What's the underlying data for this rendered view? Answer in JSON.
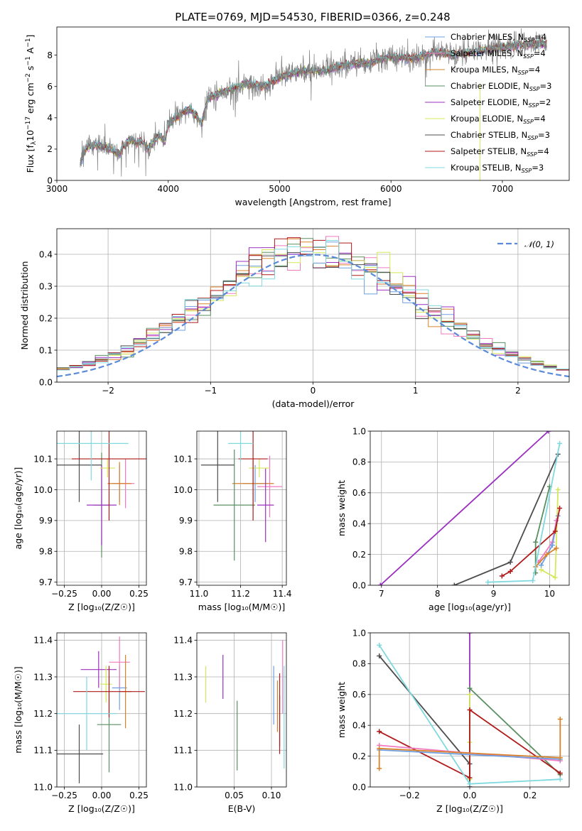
{
  "colors": {
    "cm": "#6f9fe0",
    "sm": "#f07ac0",
    "km": "#d9822b",
    "ce": "#5a8f62",
    "se": "#9b30c0",
    "ke": "#d4e85a",
    "cs": "#4d4d4d",
    "ss": "#b01a1a",
    "ks": "#7fd9df",
    "obs": "#808080",
    "gauss": "#5a8ad9"
  },
  "chart_data": [
    {
      "id": "spectrum",
      "type": "line",
      "title": "PLATE=0769, MJD=54530, FIBERID=0366, z=0.248",
      "xlabel": "wavelength [Angstrom, rest frame]",
      "ylabel_pre": "Flux [f",
      "ylabel_sub": "λ",
      "ylabel_mid": "10",
      "ylabel_exp": "−17",
      "ylabel_post": " erg cm",
      "ylabel_exp2": "−2",
      "ylabel_post2": " s",
      "ylabel_exp3": "−1",
      "ylabel_post3": " A",
      "ylabel_exp4": "−1",
      "ylabel_end": "]",
      "xlim": [
        3000,
        7600
      ],
      "ylim": [
        0,
        9.8
      ],
      "xticks": [
        3000,
        4000,
        5000,
        6000,
        7000
      ],
      "yticks": [
        0,
        2,
        4,
        6,
        8
      ],
      "legend_position": "top-right",
      "continuum": [
        [
          3210,
          1.1
        ],
        [
          3260,
          2.1
        ],
        [
          3320,
          2.2
        ],
        [
          3400,
          2.2
        ],
        [
          3500,
          1.9
        ],
        [
          3560,
          1.7
        ],
        [
          3600,
          2.2
        ],
        [
          3660,
          2.6
        ],
        [
          3720,
          2.4
        ],
        [
          3760,
          2.5
        ],
        [
          3820,
          2.0
        ],
        [
          3880,
          2.6
        ],
        [
          3920,
          2.9
        ],
        [
          3970,
          2.4
        ],
        [
          4000,
          3.6
        ],
        [
          4100,
          4.2
        ],
        [
          4200,
          4.6
        ],
        [
          4300,
          3.6
        ],
        [
          4350,
          5.2
        ],
        [
          4500,
          5.7
        ],
        [
          4700,
          6.2
        ],
        [
          4861,
          6.0
        ],
        [
          5000,
          6.6
        ],
        [
          5200,
          7.0
        ],
        [
          5400,
          7.0
        ],
        [
          5600,
          7.4
        ],
        [
          5800,
          7.5
        ],
        [
          6000,
          7.9
        ],
        [
          6200,
          7.8
        ],
        [
          6400,
          8.2
        ],
        [
          6563,
          8.0
        ],
        [
          6800,
          8.3
        ],
        [
          7000,
          8.5
        ],
        [
          7200,
          8.7
        ],
        [
          7400,
          8.7
        ]
      ],
      "series": [
        {
          "key": "cm",
          "label_pre": "Chabrier MILES, N",
          "label_sub": "SSP",
          "label_post": "=4"
        },
        {
          "key": "sm",
          "label_pre": "Salpeter MILES, N",
          "label_sub": "SSP",
          "label_post": "=4"
        },
        {
          "key": "km",
          "label_pre": "Kroupa MILES, N",
          "label_sub": "SSP",
          "label_post": "=4"
        },
        {
          "key": "ce",
          "label_pre": "Chabrier ELODIE, N",
          "label_sub": "SSP",
          "label_post": "=3"
        },
        {
          "key": "se",
          "label_pre": "Salpeter ELODIE, N",
          "label_sub": "SSP",
          "label_post": "=2"
        },
        {
          "key": "ke",
          "label_pre": "Kroupa ELODIE, N",
          "label_sub": "SSP",
          "label_post": "=4"
        },
        {
          "key": "cs",
          "label_pre": "Chabrier STELIB, N",
          "label_sub": "SSP",
          "label_post": "=3"
        },
        {
          "key": "ss",
          "label_pre": "Salpeter STELIB, N",
          "label_sub": "SSP",
          "label_post": "=4"
        },
        {
          "key": "ks",
          "label_pre": "Kroupa STELIB, N",
          "label_sub": "SSP",
          "label_post": "=3"
        }
      ]
    },
    {
      "id": "residuals",
      "type": "histogram",
      "xlabel": "(data-model)/error",
      "ylabel": "Normed distribution",
      "xlim": [
        -2.5,
        2.5
      ],
      "ylim": [
        0,
        0.48
      ],
      "xticks": [
        -2,
        -1,
        0,
        1,
        2
      ],
      "xtick_labels": [
        "−2",
        "−1",
        "0",
        "1",
        "2"
      ],
      "yticks": [
        0.0,
        0.1,
        0.2,
        0.3,
        0.4
      ],
      "ytick_labels": [
        "0.0",
        "0.1",
        "0.2",
        "0.3",
        "0.4"
      ],
      "grid": true,
      "legend_position": "top-right",
      "legend_label": "𝒩(0, 1)",
      "gaussian": {
        "mu": 0,
        "sigma": 1
      }
    },
    {
      "id": "age_vs_Z",
      "type": "errorbar",
      "xlabel": "Z [log₁₀(Z/Z☉)]",
      "ylabel": "age  [log₁₀(age/yr)]",
      "xlim": [
        -0.3,
        0.3
      ],
      "ylim": [
        9.69,
        10.19
      ],
      "xticks": [
        -0.25,
        0.0,
        0.25
      ],
      "xtick_labels": [
        "−0.25",
        "0.00",
        "0.25"
      ],
      "yticks": [
        9.7,
        9.8,
        9.9,
        10.0,
        10.1
      ],
      "ytick_labels": [
        "9.7",
        "9.8",
        "9.9",
        "10.0",
        "10.1"
      ],
      "grid": true,
      "points": [
        {
          "key": "cm",
          "x": 0.12,
          "xerr": 0.05,
          "y": 10.02,
          "yerr": 0.06
        },
        {
          "key": "sm",
          "x": 0.16,
          "xerr": 0.06,
          "y": 10.02,
          "yerr": 0.08
        },
        {
          "key": "km",
          "x": 0.12,
          "xerr": 0.08,
          "y": 10.02,
          "yerr": 0.07
        },
        {
          "key": "ce",
          "x": 0.0,
          "xerr": 0.05,
          "y": 9.95,
          "yerr": 0.17
        },
        {
          "key": "se",
          "x": 0.0,
          "xerr": 0.1,
          "y": 9.95,
          "yerr": 0.13
        },
        {
          "key": "ke",
          "x": 0.04,
          "xerr": 0.05,
          "y": 10.07,
          "yerr": 0.03
        },
        {
          "key": "cs",
          "x": -0.15,
          "xerr": 0.15,
          "y": 10.08,
          "yerr": 0.12
        },
        {
          "key": "ss",
          "x": 0.05,
          "xerr": 0.25,
          "y": 10.1,
          "yerr": 0.2
        },
        {
          "key": "ks",
          "x": -0.07,
          "xerr": 0.25,
          "y": 10.15,
          "yerr": 0.12
        }
      ]
    },
    {
      "id": "age_vs_mass",
      "type": "errorbar",
      "xlabel": "mass [log₁₀(M/M☉)]",
      "ylabel": "",
      "xlim": [
        10.99,
        11.42
      ],
      "ylim": [
        9.69,
        10.19
      ],
      "xticks": [
        11.0,
        11.2,
        11.4
      ],
      "xtick_labels": [
        "11.0",
        "11.2",
        "11.4"
      ],
      "yticks": [
        9.7,
        9.8,
        9.9,
        10.0,
        10.1
      ],
      "ytick_labels": [
        "9.7",
        "9.8",
        "9.9",
        "10.0",
        "10.1"
      ],
      "grid": true,
      "points": [
        {
          "key": "cm",
          "x": 11.27,
          "xerr": 0.06,
          "y": 10.02,
          "yerr": 0.06
        },
        {
          "key": "sm",
          "x": 11.34,
          "xerr": 0.06,
          "y": 10.01,
          "yerr": 0.1
        },
        {
          "key": "km",
          "x": 11.26,
          "xerr": 0.1,
          "y": 10.02,
          "yerr": 0.08
        },
        {
          "key": "ce",
          "x": 11.17,
          "xerr": 0.1,
          "y": 9.95,
          "yerr": 0.18
        },
        {
          "key": "se",
          "x": 11.32,
          "xerr": 0.04,
          "y": 9.95,
          "yerr": 0.12
        },
        {
          "key": "ke",
          "x": 11.29,
          "xerr": 0.05,
          "y": 10.07,
          "yerr": 0.03
        },
        {
          "key": "cs",
          "x": 11.09,
          "xerr": 0.08,
          "y": 10.08,
          "yerr": 0.12
        },
        {
          "key": "ss",
          "x": 11.26,
          "xerr": 0.07,
          "y": 10.1,
          "yerr": 0.2
        },
        {
          "key": "ks",
          "x": 11.2,
          "xerr": 0.06,
          "y": 10.15,
          "yerr": 0.06
        }
      ]
    },
    {
      "id": "weight_vs_age",
      "type": "line",
      "xlabel": "age  [log₁₀(age/yr)]",
      "ylabel": "mass weight",
      "xlim": [
        6.8,
        10.35
      ],
      "ylim": [
        0,
        1.0
      ],
      "xticks": [
        7,
        8,
        9,
        10
      ],
      "xtick_labels": [
        "7",
        "8",
        "9",
        "10"
      ],
      "yticks": [
        0.0,
        0.2,
        0.4,
        0.6,
        0.8,
        1.0
      ],
      "ytick_labels": [
        "0.0",
        "0.2",
        "0.4",
        "0.6",
        "0.8",
        "1.0"
      ],
      "grid": true,
      "series": [
        {
          "key": "ce",
          "points": [
            [
              9.75,
              0.08
            ],
            [
              9.75,
              0.28
            ],
            [
              10.0,
              0.64
            ]
          ]
        },
        {
          "key": "ke",
          "points": [
            [
              9.85,
              0.1
            ],
            [
              10.1,
              0.05
            ],
            [
              10.15,
              0.62
            ]
          ]
        },
        {
          "key": "se",
          "points": [
            [
              6.98,
              0.0
            ],
            [
              9.98,
              1.0
            ]
          ]
        },
        {
          "key": "cs",
          "points": [
            [
              8.3,
              0.0
            ],
            [
              9.3,
              0.15
            ],
            [
              10.15,
              0.85
            ]
          ]
        },
        {
          "key": "sm",
          "points": [
            [
              9.8,
              0.15
            ],
            [
              10.05,
              0.28
            ],
            [
              10.12,
              0.42
            ]
          ]
        },
        {
          "key": "cm",
          "points": [
            [
              9.85,
              0.13
            ],
            [
              10.05,
              0.26
            ],
            [
              10.15,
              0.45
            ]
          ]
        },
        {
          "key": "km",
          "points": [
            [
              9.75,
              0.12
            ],
            [
              9.95,
              0.2
            ],
            [
              10.12,
              0.24
            ]
          ]
        },
        {
          "key": "ss",
          "points": [
            [
              9.15,
              0.06
            ],
            [
              9.3,
              0.09
            ],
            [
              10.1,
              0.35
            ],
            [
              10.18,
              0.5
            ]
          ]
        },
        {
          "key": "ks",
          "points": [
            [
              8.9,
              0.02
            ],
            [
              9.7,
              0.03
            ],
            [
              10.18,
              0.92
            ]
          ]
        }
      ]
    },
    {
      "id": "mass_vs_Z",
      "type": "errorbar",
      "xlabel": "Z [log₁₀(Z/Z☉)]",
      "ylabel": "mass [log₁₀(M/M☉)]",
      "xlim": [
        -0.3,
        0.3
      ],
      "ylim": [
        11.0,
        11.42
      ],
      "xticks": [
        -0.25,
        0.0,
        0.25
      ],
      "xtick_labels": [
        "−0.25",
        "0.00",
        "0.25"
      ],
      "yticks": [
        11.0,
        11.1,
        11.2,
        11.3,
        11.4
      ],
      "ytick_labels": [
        "11.0",
        "11.1",
        "11.2",
        "11.3",
        "11.4"
      ],
      "grid": true,
      "points": [
        {
          "key": "cm",
          "x": 0.12,
          "xerr": 0.05,
          "y": 11.27,
          "yerr": 0.06
        },
        {
          "key": "sm",
          "x": 0.12,
          "xerr": 0.07,
          "y": 11.34,
          "yerr": 0.07
        },
        {
          "key": "km",
          "x": 0.16,
          "xerr": 0.04,
          "y": 11.26,
          "yerr": 0.1
        },
        {
          "key": "ce",
          "x": 0.05,
          "xerr": 0.08,
          "y": 11.17,
          "yerr": 0.13
        },
        {
          "key": "se",
          "x": -0.02,
          "xerr": 0.12,
          "y": 11.32,
          "yerr": 0.05
        },
        {
          "key": "ke",
          "x": 0.03,
          "xerr": 0.04,
          "y": 11.28,
          "yerr": 0.05
        },
        {
          "key": "cs",
          "x": -0.15,
          "xerr": 0.16,
          "y": 11.09,
          "yerr": 0.08
        },
        {
          "key": "ss",
          "x": 0.05,
          "xerr": 0.24,
          "y": 11.26,
          "yerr": 0.07
        },
        {
          "key": "ks",
          "x": -0.1,
          "xerr": 0.2,
          "y": 11.2,
          "yerr": 0.1
        }
      ]
    },
    {
      "id": "mass_vs_ebv",
      "type": "errorbar",
      "xlabel": "E(B-V)",
      "ylabel": "",
      "xlim": [
        0.0,
        0.12
      ],
      "ylim": [
        11.0,
        11.42
      ],
      "xticks": [
        0.05,
        0.1
      ],
      "xtick_labels": [
        "0.05",
        "0.10"
      ],
      "yticks": [
        11.0,
        11.1,
        11.2,
        11.3,
        11.4
      ],
      "ytick_labels": [
        "11.0",
        "11.1",
        "11.2",
        "11.3",
        "11.4"
      ],
      "grid": true,
      "points": [
        {
          "key": "cm",
          "x": 0.103,
          "xerr": 0.0,
          "y": 11.25,
          "yerr": 0.08
        },
        {
          "key": "sm",
          "x": 0.115,
          "xerr": 0.0,
          "y": 11.3,
          "yerr": 0.1
        },
        {
          "key": "km",
          "x": 0.108,
          "xerr": 0.0,
          "y": 11.22,
          "yerr": 0.07
        },
        {
          "key": "ce",
          "x": 0.054,
          "xerr": 0.0,
          "y": 11.14,
          "yerr": 0.095
        },
        {
          "key": "se",
          "x": 0.035,
          "xerr": 0.0,
          "y": 11.3,
          "yerr": 0.06
        },
        {
          "key": "ke",
          "x": 0.012,
          "xerr": 0.0,
          "y": 11.28,
          "yerr": 0.05
        },
        {
          "key": "cs",
          "x": 0.111,
          "xerr": 0.0,
          "y": 11.18,
          "yerr": 0.07
        },
        {
          "key": "ss",
          "x": 0.111,
          "xerr": 0.0,
          "y": 11.2,
          "yerr": 0.11
        },
        {
          "key": "ks",
          "x": 0.117,
          "xerr": 0.0,
          "y": 11.19,
          "yerr": 0.14
        }
      ]
    },
    {
      "id": "weight_vs_Z",
      "type": "line",
      "xlabel": "Z [log₁₀(Z/Z☉)]",
      "ylabel": "mass weight",
      "xlim": [
        -0.33,
        0.33
      ],
      "ylim": [
        0,
        1.0
      ],
      "xticks": [
        -0.2,
        0.0,
        0.2
      ],
      "xtick_labels": [
        "−0.2",
        "0.0",
        "0.2"
      ],
      "yticks": [
        0.0,
        0.2,
        0.4,
        0.6,
        0.8,
        1.0
      ],
      "ytick_labels": [
        "0.0",
        "0.2",
        "0.4",
        "0.6",
        "0.8",
        "1.0"
      ],
      "grid": true,
      "series": [
        {
          "key": "se",
          "points": [
            [
              0.0,
              0.0
            ],
            [
              0.0,
              1.0
            ]
          ]
        },
        {
          "key": "ke",
          "points": [
            [
              0.0,
              0.29
            ],
            [
              0.0,
              0.6
            ],
            [
              0.0,
              0.05
            ]
          ]
        },
        {
          "key": "ce",
          "points": [
            [
              0.0,
              0.64
            ],
            [
              0.3,
              0.08
            ]
          ]
        },
        {
          "key": "cs",
          "points": [
            [
              -0.3,
              0.85
            ],
            [
              0.0,
              0.15
            ],
            [
              0.0,
              0.0
            ]
          ]
        },
        {
          "key": "ss",
          "points": [
            [
              -0.3,
              0.36
            ],
            [
              0.0,
              0.06
            ],
            [
              0.0,
              0.5
            ],
            [
              0.3,
              0.09
            ]
          ]
        },
        {
          "key": "ks",
          "points": [
            [
              -0.3,
              0.92
            ],
            [
              0.0,
              0.02
            ],
            [
              0.3,
              0.05
            ]
          ]
        },
        {
          "key": "sm",
          "points": [
            [
              -0.3,
              0.27
            ],
            [
              0.3,
              0.17
            ]
          ]
        },
        {
          "key": "cm",
          "points": [
            [
              -0.3,
              0.24
            ],
            [
              0.3,
              0.18
            ]
          ]
        },
        {
          "key": "km",
          "points": [
            [
              -0.3,
              0.12
            ],
            [
              -0.3,
              0.25
            ],
            [
              0.3,
              0.19
            ],
            [
              0.3,
              0.44
            ]
          ]
        }
      ]
    }
  ]
}
